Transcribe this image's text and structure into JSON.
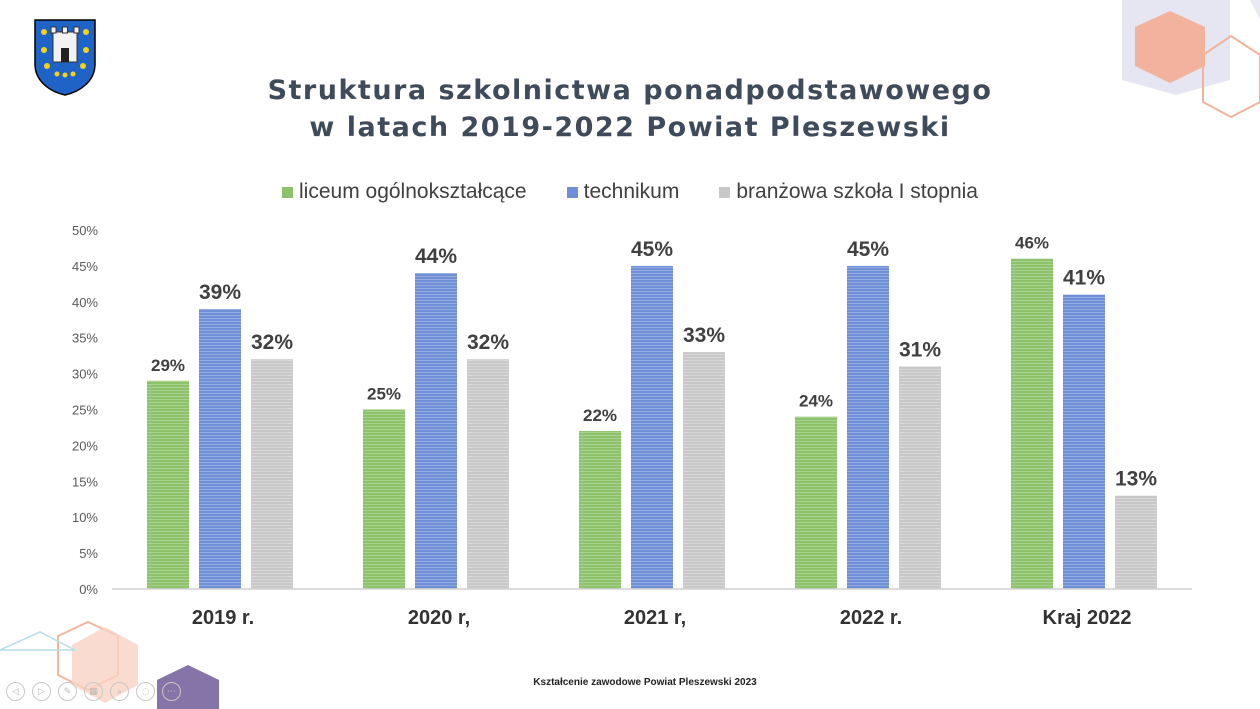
{
  "slide": {
    "title_line1": "Struktura szkolnictwa ponadpodstawowego",
    "title_line2": "w latach 2019-2022 Powiat Pleszewski",
    "footer": "Kształcenie zawodowe Powiat Pleszewski 2023",
    "logo_icon": "coat-of-arms-icon"
  },
  "colors": {
    "liceum": "#8cc36a",
    "technikum": "#6f8fd6",
    "branzowa": "#c8c8c8",
    "title": "#3f4b5b"
  },
  "controls": [
    {
      "icon": "prev-slide-icon",
      "glyph": "◁"
    },
    {
      "icon": "next-slide-icon",
      "glyph": "▷"
    },
    {
      "icon": "pen-icon",
      "glyph": "✎"
    },
    {
      "icon": "slides-grid-icon",
      "glyph": "▦"
    },
    {
      "icon": "zoom-icon",
      "glyph": "⌕"
    },
    {
      "icon": "pointer-icon",
      "glyph": "◌"
    },
    {
      "icon": "more-icon",
      "glyph": "⋯"
    }
  ],
  "chart_data": {
    "type": "bar",
    "title": "Struktura szkolnictwa ponadpodstawowego w latach 2019-2022 Powiat Pleszewski",
    "categories": [
      "2019 r.",
      "2020 r,",
      "2021 r,",
      "2022 r.",
      "Kraj 2022"
    ],
    "series": [
      {
        "name": "liceum ogólnokształcące",
        "values": [
          29,
          25,
          22,
          24,
          46
        ],
        "labels": [
          "29%",
          "25%",
          "22%",
          "24%",
          "46%"
        ]
      },
      {
        "name": "technikum",
        "values": [
          39,
          44,
          45,
          45,
          41
        ],
        "labels": [
          "39%",
          "44%",
          "45%",
          "45%",
          "41%"
        ]
      },
      {
        "name": "branżowa szkoła I stopnia",
        "values": [
          32,
          32,
          33,
          31,
          13
        ],
        "labels": [
          "32%",
          "32%",
          "33%",
          "31%",
          "13%"
        ]
      }
    ],
    "yticks": [
      "0%",
      "5%",
      "10%",
      "15%",
      "20%",
      "25%",
      "30%",
      "35%",
      "40%",
      "45%",
      "50%"
    ],
    "ylim": [
      0,
      50
    ],
    "legend_position": "top",
    "grid": false
  }
}
